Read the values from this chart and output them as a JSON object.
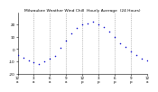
{
  "title": "Milwaukee Weather Wind Chill  Hourly Average  (24 Hours)",
  "title_fontsize": 3.2,
  "background_color": "#ffffff",
  "dot_color": "#0000cc",
  "dot_size": 1.2,
  "hours": [
    0,
    1,
    2,
    3,
    4,
    5,
    6,
    7,
    8,
    9,
    10,
    11,
    12,
    13,
    14,
    15,
    16,
    17,
    18,
    19,
    20,
    21,
    22,
    23,
    24
  ],
  "wind_chill": [
    -5,
    -7,
    -9,
    -11,
    -12,
    -10,
    -8,
    -6,
    1,
    7,
    13,
    17,
    20,
    21,
    22,
    20,
    18,
    14,
    10,
    5,
    2,
    -2,
    -5,
    -8,
    -9
  ],
  "ylim_min": -20,
  "ylim_max": 30,
  "ytick_values": [
    -20,
    -10,
    0,
    10,
    20
  ],
  "xlim_min": 0,
  "xlim_max": 24,
  "xtick_positions": [
    0,
    3,
    6,
    9,
    12,
    15,
    18,
    21,
    24
  ],
  "xtick_labels_top": [
    "12",
    "3",
    "6",
    "9",
    "12",
    "3",
    "6",
    "9",
    "12"
  ],
  "xtick_labels_bot": [
    "a",
    "a",
    "a",
    "a",
    "p",
    "p",
    "p",
    "p",
    "a"
  ],
  "vgrid_positions": [
    3,
    6,
    9,
    12,
    15,
    18,
    21
  ],
  "grid_color": "#999999",
  "grid_linestyle": ":",
  "grid_linewidth": 0.6,
  "tick_fontsize": 3.0,
  "left_axis": true
}
